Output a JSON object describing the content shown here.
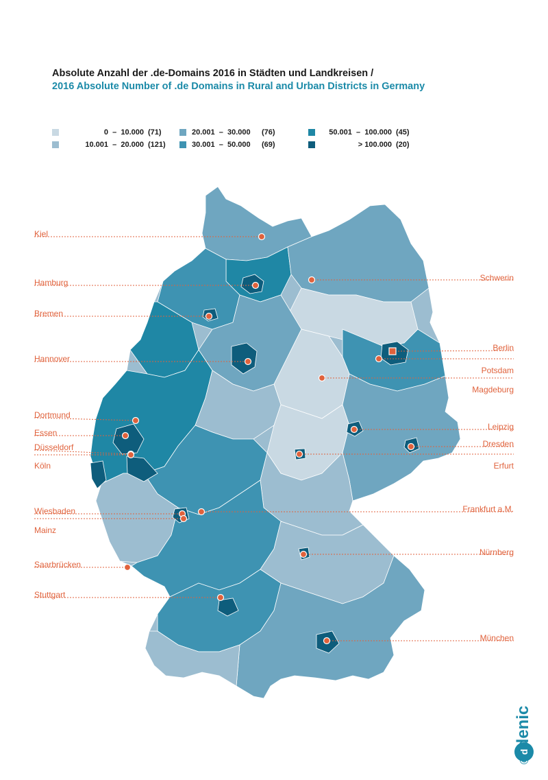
{
  "title": {
    "german": "Absolute Anzahl der .de-Domains 2016 in Städten und Landkreisen /",
    "english": "2016 Absolute Number of .de Domains in Rural and Urban Districts in Germany"
  },
  "legend": [
    {
      "range": "0  –  10.000",
      "count": "(71)",
      "color": "#c9d9e3"
    },
    {
      "range": "10.001  –  20.000",
      "count": "(121)",
      "color": "#9cbdd0"
    },
    {
      "range": "20.001  –  30.000",
      "count": "(76)",
      "color": "#6fa6c0"
    },
    {
      "range": "30.001  –  50.000",
      "count": "(69)",
      "color": "#3e93b2"
    },
    {
      "range": "50.001  –  100.000",
      "count": "(45)",
      "color": "#1f87a5"
    },
    {
      "range": "> 100.000",
      "count": "(20)",
      "color": "#0e5d7c"
    }
  ],
  "cities_left": [
    {
      "name": "Kiel"
    },
    {
      "name": "Hamburg"
    },
    {
      "name": "Bremen"
    },
    {
      "name": "Hannover"
    },
    {
      "name": "Dortmund"
    },
    {
      "name": "Essen"
    },
    {
      "name": "Düsseldorf"
    },
    {
      "name": "Köln"
    },
    {
      "name": "Wiesbaden"
    },
    {
      "name": "Mainz"
    },
    {
      "name": "Saarbrücken"
    },
    {
      "name": "Stuttgart"
    }
  ],
  "cities_right": [
    {
      "name": "Schwerin"
    },
    {
      "name": "Berlin"
    },
    {
      "name": "Potsdam"
    },
    {
      "name": "Magdeburg"
    },
    {
      "name": "Leipzig"
    },
    {
      "name": "Dresden"
    },
    {
      "name": "Erfurt"
    },
    {
      "name": "Frankfurt a.M."
    },
    {
      "name": "Nürnberg"
    },
    {
      "name": "München"
    }
  ],
  "brand": {
    "name": "denic",
    "copyright": "©"
  },
  "colors": {
    "accent": "#e0623c",
    "title_blue": "#1b8aa8",
    "district_border": "#ffffff"
  }
}
